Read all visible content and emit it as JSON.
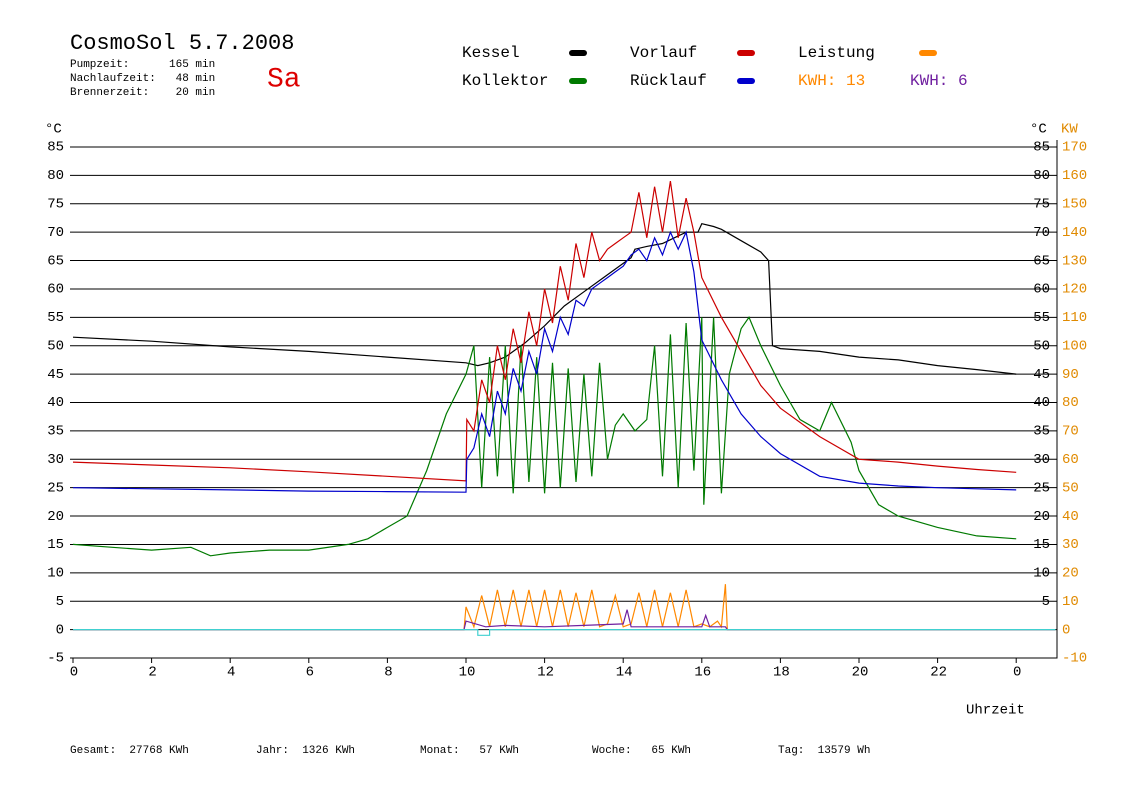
{
  "chart_data": {
    "type": "line",
    "title": "CosmoSol 5.7.2008",
    "info": [
      "Pumpzeit:      165 min",
      "Nachlaufzeit:   48 min",
      "Brennerzeit:    20 min"
    ],
    "weekday": "Sa",
    "y_unit": "°C",
    "y2_unit": "KW",
    "x_label": "Uhrzeit",
    "kwh_labels": [
      "KWH: 13",
      "KWH: 6"
    ],
    "footer": [
      "Gesamt:  27768 KWh",
      "Jahr:  1326 KWh",
      "Monat:   57 KWh",
      "Woche:   65 KWh",
      "Tag:  13579 Wh"
    ],
    "xlim": [
      0,
      25
    ],
    "xticks": [
      0,
      2,
      4,
      6,
      8,
      10,
      12,
      14,
      16,
      18,
      20,
      22,
      {
        "value": 24,
        "label": "0"
      }
    ],
    "ylim": [
      -5,
      85
    ],
    "yticks": [
      85,
      80,
      75,
      70,
      65,
      60,
      55,
      50,
      45,
      40,
      35,
      30,
      25,
      20,
      15,
      10,
      5,
      0,
      -5
    ],
    "yticks_right": [
      85,
      80,
      75,
      70,
      65,
      60,
      55,
      50,
      45,
      40,
      35,
      30,
      25,
      20,
      15,
      10,
      5
    ],
    "y2lim": [
      -10,
      170
    ],
    "y2ticks": [
      170,
      160,
      150,
      140,
      130,
      120,
      110,
      100,
      90,
      80,
      70,
      60,
      50,
      40,
      30,
      20,
      10,
      0,
      -10
    ],
    "grid": true,
    "series": [
      {
        "name": "Kessel",
        "color": "#000000",
        "x": [
          0,
          2,
          4,
          6,
          8,
          10,
          10.3,
          10.6,
          11,
          11.5,
          12,
          12.5,
          13,
          13.5,
          14,
          14.2,
          14.3,
          14.6,
          15,
          15.3,
          15.6,
          15.9,
          16,
          16.3,
          16.5,
          17,
          17.5,
          17.7,
          17.8,
          18,
          19,
          20,
          21,
          22,
          23,
          24
        ],
        "values": [
          51.5,
          50.8,
          49.8,
          49,
          48,
          47,
          46.5,
          47,
          48,
          50.5,
          53.5,
          57,
          59.5,
          62,
          64.5,
          65.5,
          67,
          67.5,
          68,
          69,
          70,
          70,
          71.5,
          71,
          70.5,
          68.5,
          66.5,
          65,
          50,
          49.5,
          49,
          48,
          47.5,
          46.5,
          45.8,
          45
        ]
      },
      {
        "name": "Kollektor",
        "color": "#007a00",
        "x": [
          0,
          1,
          2,
          3,
          3.5,
          4,
          5,
          6,
          7,
          7.5,
          8,
          8.5,
          9,
          9.5,
          10,
          10.2,
          10.4,
          10.6,
          10.8,
          11,
          11.2,
          11.4,
          11.6,
          11.8,
          12,
          12.2,
          12.4,
          12.6,
          12.8,
          13,
          13.2,
          13.4,
          13.6,
          13.8,
          14,
          14.3,
          14.6,
          14.8,
          15,
          15.2,
          15.4,
          15.6,
          15.8,
          16,
          16.05,
          16.3,
          16.5,
          16.7,
          17,
          17.2,
          17.5,
          18,
          18.5,
          19,
          19.3,
          19.8,
          20,
          20.5,
          21,
          22,
          23,
          24
        ],
        "values": [
          15,
          14.5,
          14,
          14.5,
          13,
          13.5,
          14,
          14,
          15,
          16,
          18,
          20,
          28,
          38,
          45,
          50,
          25,
          48,
          27,
          50,
          24,
          50,
          26,
          48,
          24,
          47,
          25,
          46,
          26,
          45,
          27,
          47,
          30,
          36,
          38,
          35,
          37,
          50,
          27,
          52,
          25,
          54,
          28,
          55,
          22,
          55,
          24,
          45,
          53,
          55,
          50,
          43,
          37,
          35,
          40,
          33,
          28,
          22,
          20,
          18,
          16.5,
          16
        ]
      },
      {
        "name": "Vorlauf",
        "color": "#cc0000",
        "x": [
          0,
          2,
          4,
          6,
          8,
          10,
          10.02,
          10.2,
          10.4,
          10.6,
          10.8,
          11,
          11.2,
          11.4,
          11.6,
          11.8,
          12,
          12.2,
          12.4,
          12.6,
          12.8,
          13,
          13.2,
          13.4,
          13.6,
          13.8,
          14,
          14.2,
          14.4,
          14.6,
          14.8,
          15,
          15.2,
          15.4,
          15.6,
          15.8,
          16,
          16.5,
          17,
          17.5,
          18,
          19,
          20,
          21,
          22,
          23,
          24
        ],
        "values": [
          29.5,
          29,
          28.5,
          27.8,
          27,
          26.2,
          37,
          35,
          44,
          40,
          50,
          44,
          53,
          47,
          56,
          50,
          60,
          54,
          64,
          58,
          68,
          62,
          70,
          65,
          67,
          68,
          69,
          70,
          77,
          69,
          78,
          70,
          79,
          69,
          76,
          70,
          62,
          55,
          49,
          43,
          39,
          34,
          30,
          29.5,
          28.8,
          28.2,
          27.7
        ]
      },
      {
        "name": "Rücklauf",
        "color": "#0000cc",
        "x": [
          0,
          2,
          4,
          6,
          8,
          10,
          10.02,
          10.2,
          10.4,
          10.6,
          10.8,
          11,
          11.2,
          11.4,
          11.6,
          11.8,
          12,
          12.2,
          12.4,
          12.6,
          12.8,
          13,
          13.2,
          13.4,
          13.6,
          13.8,
          14,
          14.2,
          14.4,
          14.6,
          14.8,
          15,
          15.2,
          15.4,
          15.6,
          15.8,
          16,
          16.5,
          17,
          17.5,
          18,
          19,
          20,
          21,
          22,
          23,
          24
        ],
        "values": [
          25,
          24.8,
          24.6,
          24.4,
          24.3,
          24.2,
          30,
          32,
          38,
          34,
          42,
          38,
          46,
          42,
          49,
          45,
          53,
          49,
          55,
          52,
          58,
          57,
          60,
          61,
          62,
          63,
          64,
          66,
          67,
          65,
          69,
          66,
          70,
          67,
          70,
          63,
          51,
          44,
          38,
          34,
          31,
          27,
          25.8,
          25.3,
          25,
          24.8,
          24.6
        ]
      },
      {
        "name": "Leistung",
        "color": "#ff8800",
        "axis": "y2",
        "x": [
          0,
          9.95,
          10,
          10.2,
          10.4,
          10.6,
          10.8,
          11,
          11.2,
          11.4,
          11.6,
          11.8,
          12,
          12.2,
          12.4,
          12.6,
          12.8,
          13,
          13.2,
          13.4,
          13.6,
          13.8,
          14,
          14.2,
          14.4,
          14.6,
          14.8,
          15,
          15.2,
          15.4,
          15.6,
          15.8,
          16,
          16.2,
          16.4,
          16.5,
          16.6,
          16.65,
          25
        ],
        "values": [
          0,
          0,
          8,
          1,
          12,
          1,
          14,
          1,
          14,
          1,
          14,
          1,
          14,
          1,
          14,
          1,
          13,
          1,
          14,
          1,
          2,
          12,
          1,
          2,
          13,
          1,
          14,
          1,
          13,
          1,
          14,
          1,
          2,
          1,
          3,
          1,
          16,
          0,
          0
        ]
      },
      {
        "color": "#7020a0",
        "axis": "y2",
        "x": [
          0,
          9.95,
          10,
          10.5,
          11,
          12,
          13,
          14,
          14.1,
          14.2,
          15,
          16,
          16.1,
          16.2,
          16.6,
          16.65,
          25
        ],
        "values": [
          0,
          0,
          3,
          1,
          1.5,
          1,
          1.5,
          2,
          7,
          1,
          1,
          1,
          5,
          1,
          1,
          0,
          0
        ]
      },
      {
        "color": "#40d0d0",
        "x": [
          0,
          10.3,
          10.3,
          10.6,
          10.6,
          25
        ],
        "values": [
          0,
          0,
          -1,
          -1,
          0,
          0
        ]
      }
    ]
  }
}
